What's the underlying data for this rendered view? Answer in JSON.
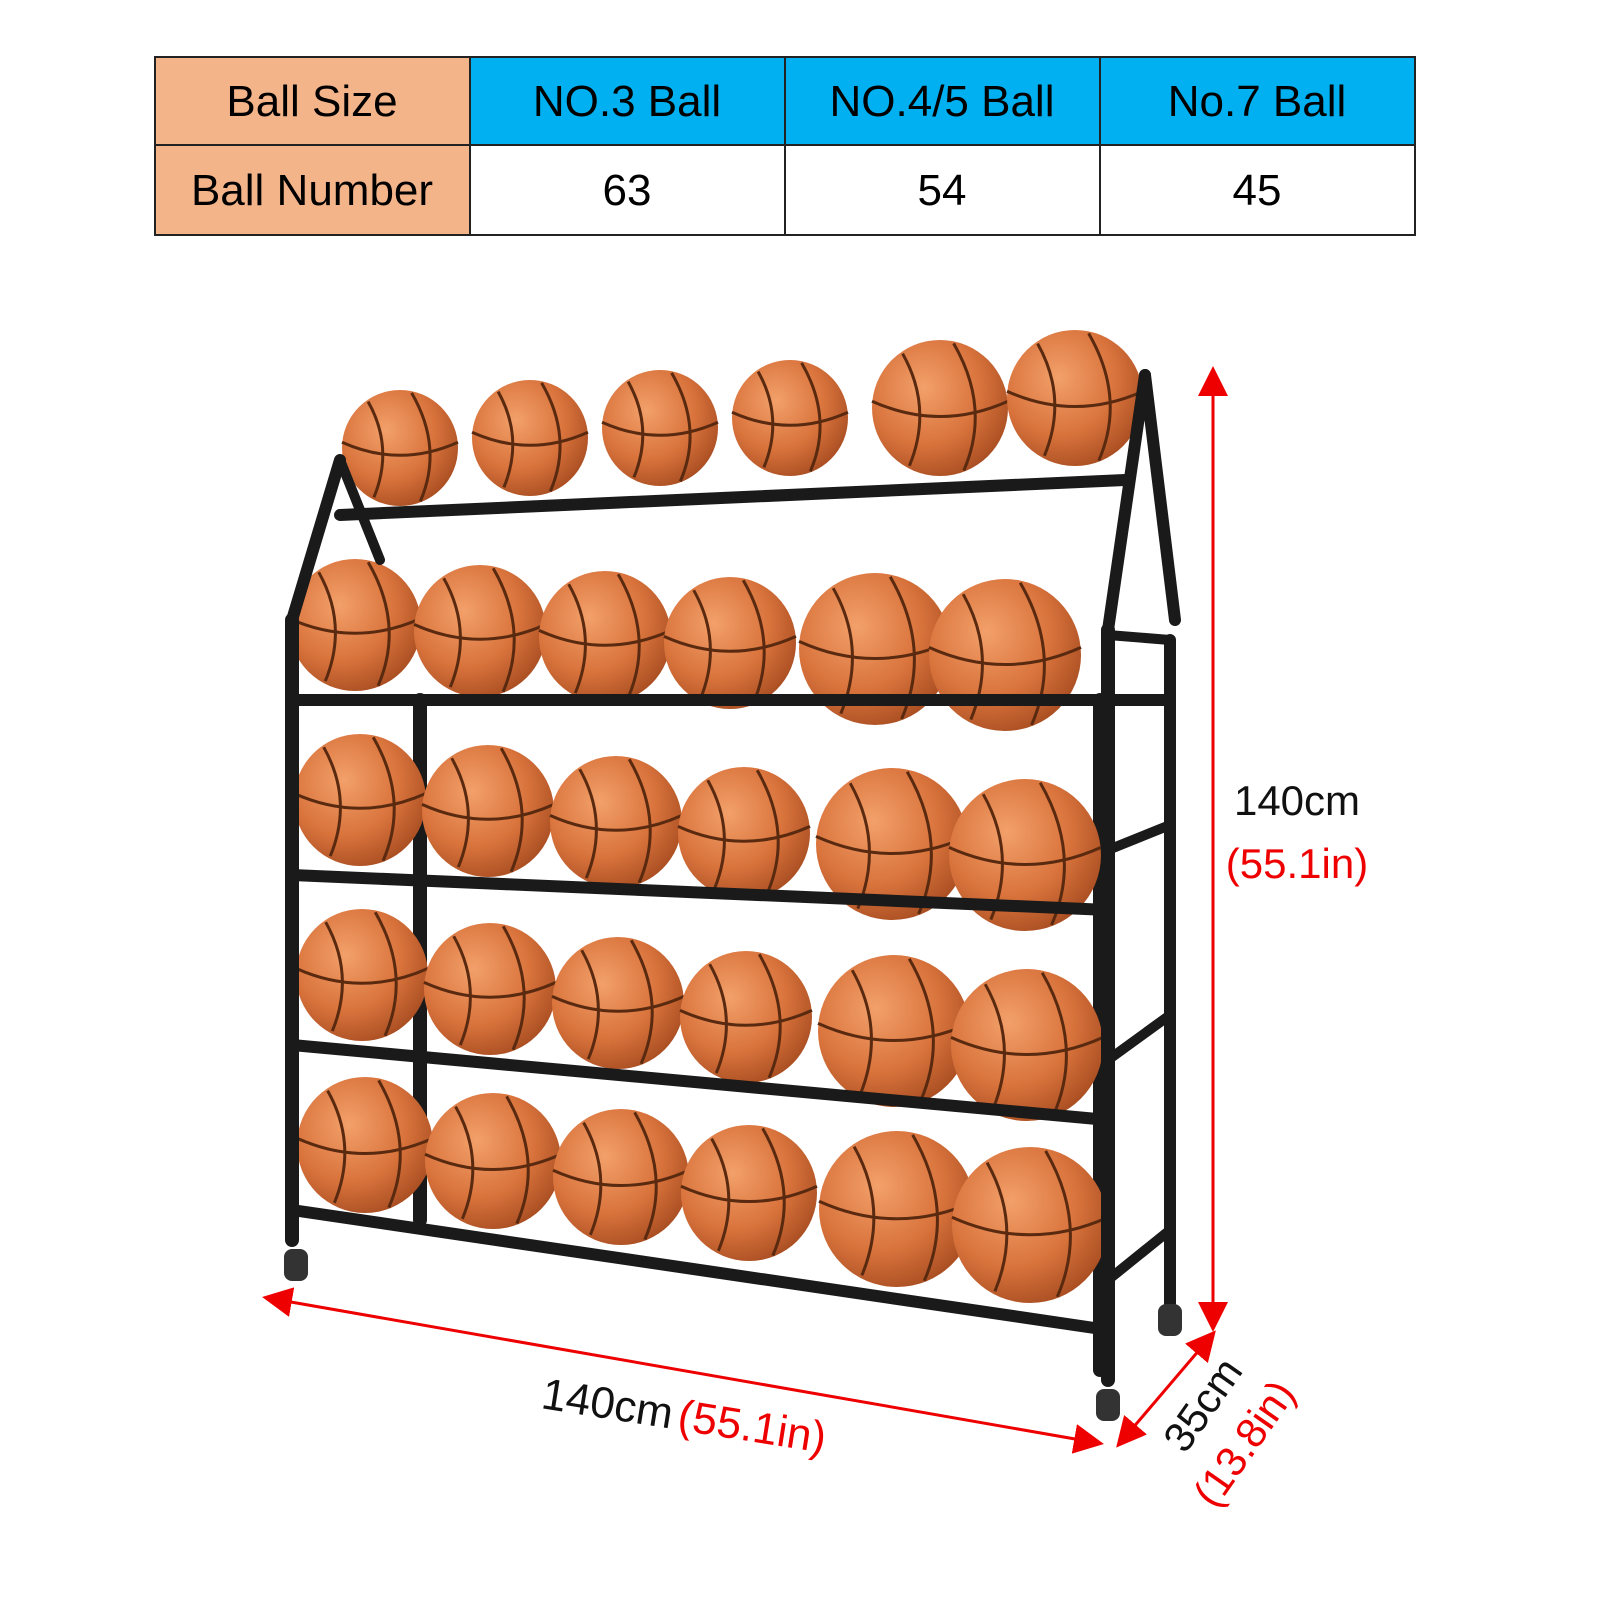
{
  "table": {
    "header": [
      "Ball Size",
      "NO.3 Ball",
      "NO.4/5 Ball",
      "No.7 Ball"
    ],
    "rows": [
      [
        "Ball Number",
        63,
        54,
        45
      ]
    ]
  },
  "dimensions": {
    "height": {
      "metric": "140cm",
      "imperial": "(55.1in)"
    },
    "width": {
      "metric": "140cm",
      "imperial": "(55.1in)"
    },
    "depth": {
      "metric": "35cm",
      "imperial": "(13.8in)"
    }
  }
}
